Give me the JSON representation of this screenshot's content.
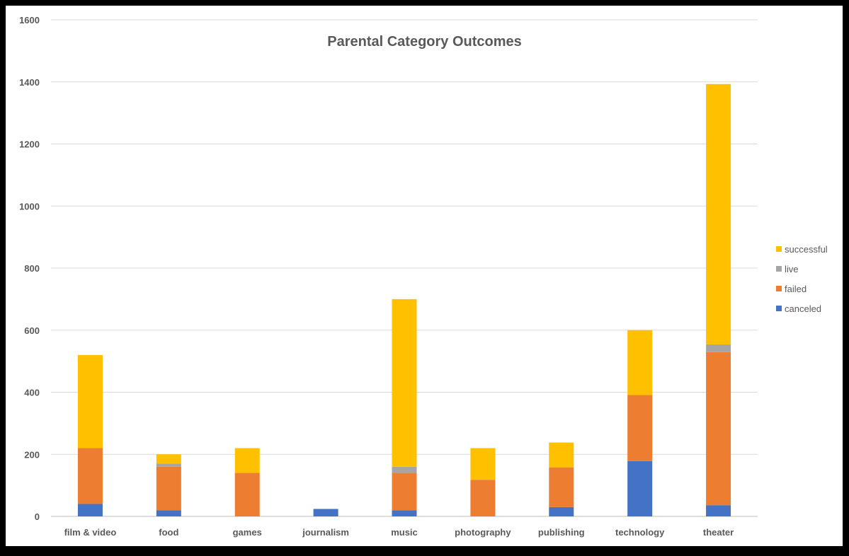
{
  "chart_data": {
    "type": "bar",
    "stacked": true,
    "title": "Parental Category Outcomes",
    "xlabel": "",
    "ylabel": "",
    "ylim": [
      0,
      1600
    ],
    "yticks": [
      0,
      200,
      400,
      600,
      800,
      1000,
      1200,
      1400,
      1600
    ],
    "grid": true,
    "legend_position": "right",
    "categories": [
      "film & video",
      "food",
      "games",
      "journalism",
      "music",
      "photography",
      "publishing",
      "technology",
      "theater"
    ],
    "series": [
      {
        "name": "canceled",
        "color": "#4472C4",
        "values": [
          40,
          20,
          0,
          24,
          20,
          0,
          30,
          178,
          36
        ]
      },
      {
        "name": "failed",
        "color": "#ED7D31",
        "values": [
          180,
          140,
          140,
          0,
          120,
          118,
          128,
          213,
          493
        ]
      },
      {
        "name": "live",
        "color": "#A5A5A5",
        "values": [
          0,
          10,
          0,
          0,
          20,
          0,
          0,
          0,
          25
        ]
      },
      {
        "name": "successful",
        "color": "#FFC000",
        "values": [
          300,
          30,
          80,
          0,
          540,
          102,
          80,
          209,
          839
        ]
      }
    ]
  }
}
